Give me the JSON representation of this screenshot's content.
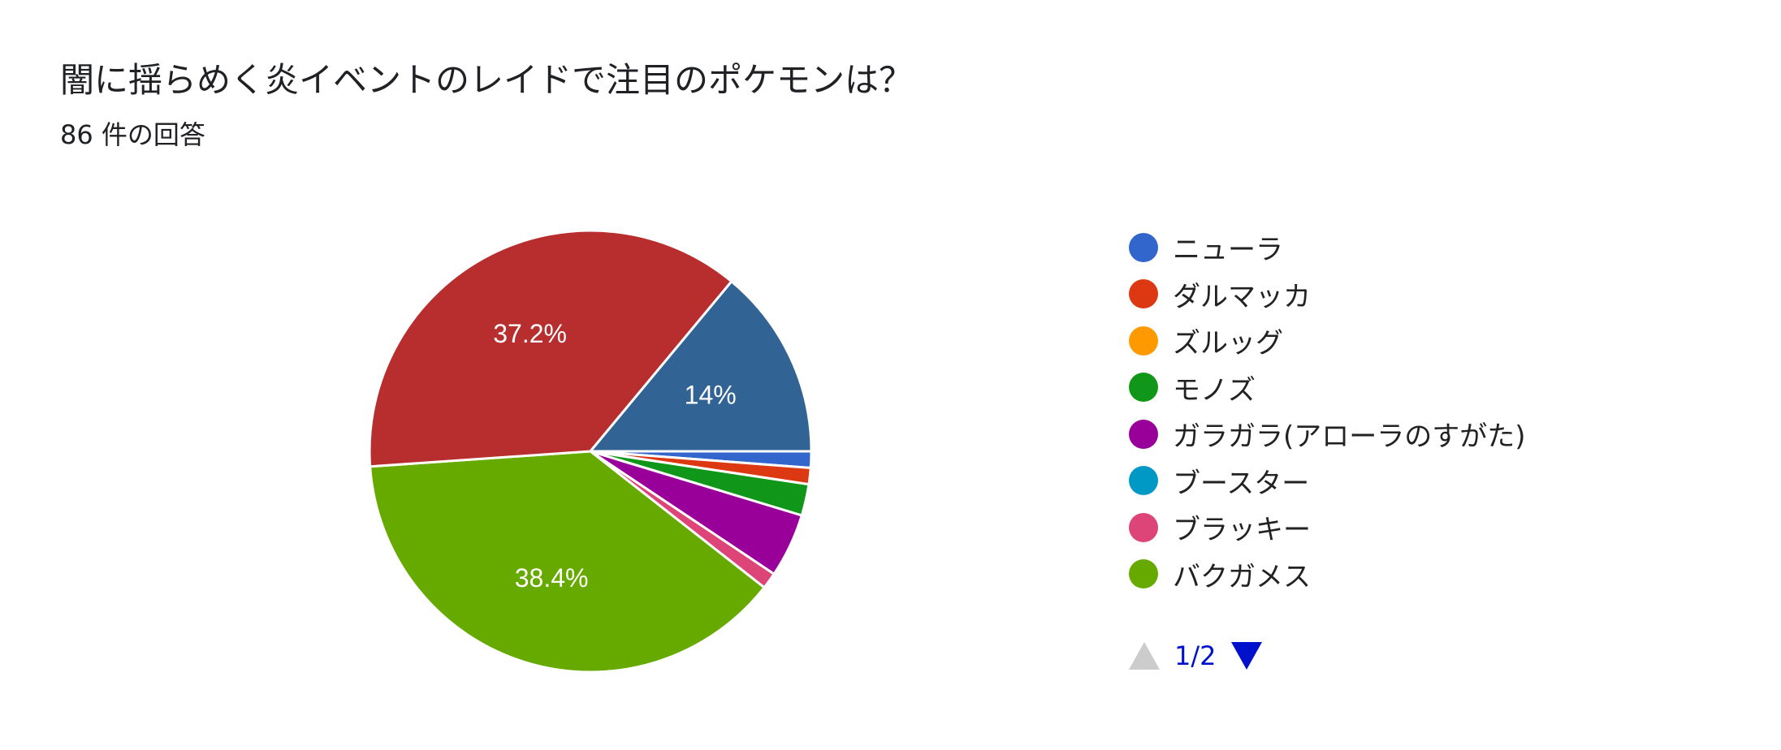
{
  "header": {
    "title": "闇に揺らめく炎イベントのレイドで注目のポケモンは？",
    "subtitle": "86 件の回答"
  },
  "chart_data": {
    "type": "pie",
    "total_responses": 86,
    "slices": [
      {
        "label": "ニューラ",
        "percent": 1.2,
        "color": "#3366cc",
        "data_label": ""
      },
      {
        "label": "ダルマッカ",
        "percent": 1.2,
        "color": "#dc3912",
        "data_label": ""
      },
      {
        "label": "ズルッグ",
        "percent": 0,
        "color": "#ff9900",
        "data_label": ""
      },
      {
        "label": "モノズ",
        "percent": 2.3,
        "color": "#109618",
        "data_label": ""
      },
      {
        "label": "ガラガラ(アローラのすがた)",
        "percent": 4.7,
        "color": "#990099",
        "data_label": ""
      },
      {
        "label": "ブースター",
        "percent": 0,
        "color": "#0099c6",
        "data_label": ""
      },
      {
        "label": "ブラッキー",
        "percent": 1.2,
        "color": "#dd4477",
        "data_label": ""
      },
      {
        "label": "バクガメス",
        "percent": 38.4,
        "color": "#66aa00",
        "data_label": "38.4%"
      },
      {
        "label": "",
        "percent": 37.2,
        "color": "#b82e2e",
        "data_label": "37.2%"
      },
      {
        "label": "",
        "percent": 14.0,
        "color": "#316395",
        "data_label": "14%"
      }
    ],
    "legend_position": "right"
  },
  "legend": {
    "items": [
      {
        "label": "ニューラ",
        "color": "#3366cc"
      },
      {
        "label": "ダルマッカ",
        "color": "#dc3912"
      },
      {
        "label": "ズルッグ",
        "color": "#ff9900"
      },
      {
        "label": "モノズ",
        "color": "#109618"
      },
      {
        "label": "ガラガラ(アローラのすがた)",
        "color": "#990099"
      },
      {
        "label": "ブースター",
        "color": "#0099c6"
      },
      {
        "label": "ブラッキー",
        "color": "#dd4477"
      },
      {
        "label": "バクガメス",
        "color": "#66aa00"
      }
    ],
    "pager": {
      "text": "1/2",
      "prev_icon": "triangle-up-icon",
      "next_icon": "triangle-down-icon",
      "active_color": "#0011cc",
      "disabled_color": "#cccccc"
    }
  }
}
